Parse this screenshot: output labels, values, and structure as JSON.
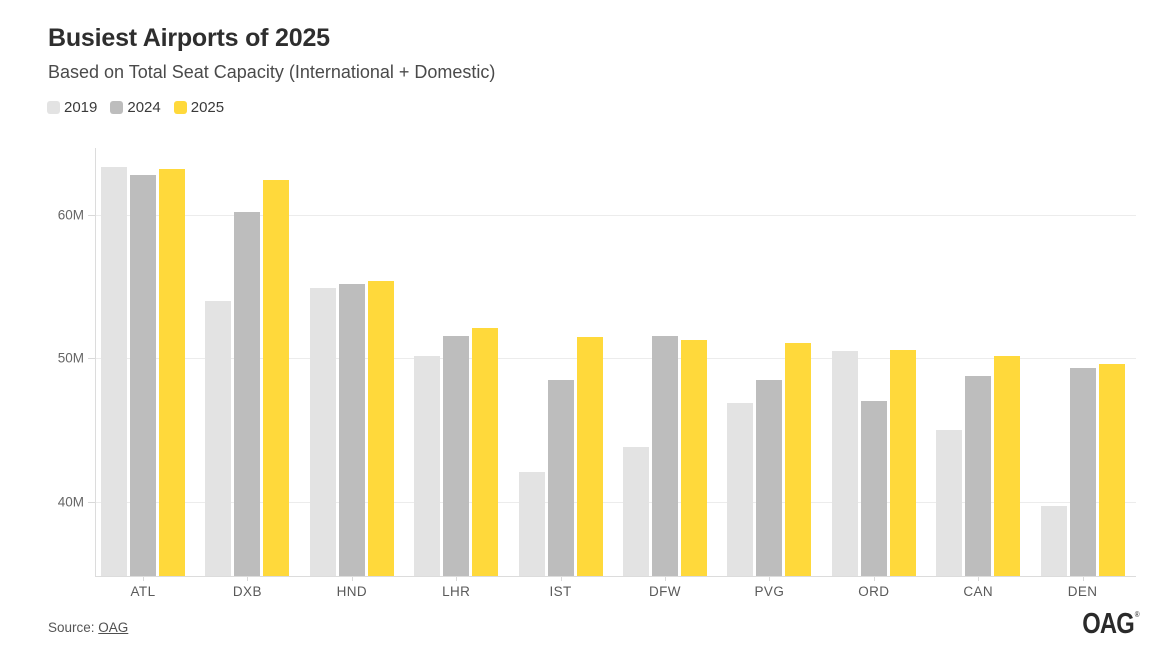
{
  "chart_data": {
    "type": "bar",
    "title": "Busiest Airports of 2025",
    "subtitle": "Based on Total Seat Capacity (International + Domestic)",
    "categories": [
      "ATL",
      "DXB",
      "HND",
      "LHR",
      "IST",
      "DFW",
      "PVG",
      "ORD",
      "CAN",
      "DEN"
    ],
    "series": [
      {
        "name": "2019",
        "color": "#E3E3E3",
        "values": [
          63.4,
          54.0,
          54.9,
          50.2,
          42.1,
          43.8,
          46.9,
          50.5,
          45.0,
          39.7
        ]
      },
      {
        "name": "2024",
        "color": "#BDBDBD",
        "values": [
          62.8,
          60.2,
          55.2,
          51.6,
          48.5,
          51.6,
          48.5,
          47.0,
          48.8,
          49.3
        ]
      },
      {
        "name": "2025",
        "color": "#FFD93B",
        "values": [
          63.2,
          62.5,
          55.4,
          52.1,
          51.5,
          51.3,
          51.1,
          50.6,
          50.2,
          49.6
        ]
      }
    ],
    "unit": "M",
    "xlabel": "",
    "ylabel": "",
    "ylim": [
      34.8,
      64.7
    ],
    "yticks": [
      {
        "value": 40,
        "label": "40M"
      },
      {
        "value": 50,
        "label": "50M"
      },
      {
        "value": 60,
        "label": "60M"
      }
    ],
    "grid": "horizontal",
    "legend_position": "top-left"
  },
  "footer": {
    "source_prefix": "Source: ",
    "source_link_label": "OAG",
    "brand_logo_text": "OAG",
    "brand_regmark": "®"
  },
  "colors": {
    "accent_yellow": "#FFD93B",
    "gray_2019": "#E3E3E3",
    "gray_2024": "#BDBDBD",
    "gridline": "#ECECEC",
    "axis": "#DCDCDC",
    "title_text": "#2E2E2E"
  }
}
